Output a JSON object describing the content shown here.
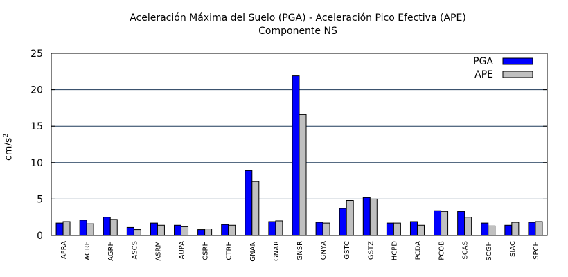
{
  "chart_data": {
    "type": "bar",
    "title": "Aceleración Máxima del Suelo (PGA) -  Aceleración Pico Efectiva (APE)",
    "subtitle": "Componente NS",
    "ylabel": "cm/s",
    "ylabel_sup": "2",
    "xlabel": "",
    "ylim": [
      0,
      25
    ],
    "yticks": [
      0,
      5,
      10,
      15,
      20,
      25
    ],
    "grid": true,
    "legend_position": "top-right",
    "categories": [
      "AFRA",
      "AGRE",
      "AGRH",
      "ASCS",
      "ASRM",
      "AUPA",
      "CSRH",
      "CTRH",
      "GNAN",
      "GNAR",
      "GNSR",
      "GNYA",
      "GSTC",
      "GSTZ",
      "HCPD",
      "PCDA",
      "PCOB",
      "SCAS",
      "SCGH",
      "SIAC",
      "SPCH"
    ],
    "series": [
      {
        "name": "PGA",
        "color": "#0000ff",
        "values": [
          1.7,
          2.1,
          2.5,
          1.1,
          1.7,
          1.4,
          0.8,
          1.5,
          8.9,
          1.9,
          21.9,
          1.8,
          3.7,
          5.2,
          1.7,
          1.9,
          3.4,
          3.3,
          1.7,
          1.4,
          1.8
        ]
      },
      {
        "name": "APE",
        "color": "#c0c0c0",
        "values": [
          1.9,
          1.6,
          2.2,
          0.8,
          1.4,
          1.2,
          0.9,
          1.4,
          7.4,
          2.0,
          16.6,
          1.7,
          4.8,
          5.0,
          1.7,
          1.4,
          3.3,
          2.5,
          1.3,
          1.8,
          1.9
        ]
      }
    ]
  }
}
